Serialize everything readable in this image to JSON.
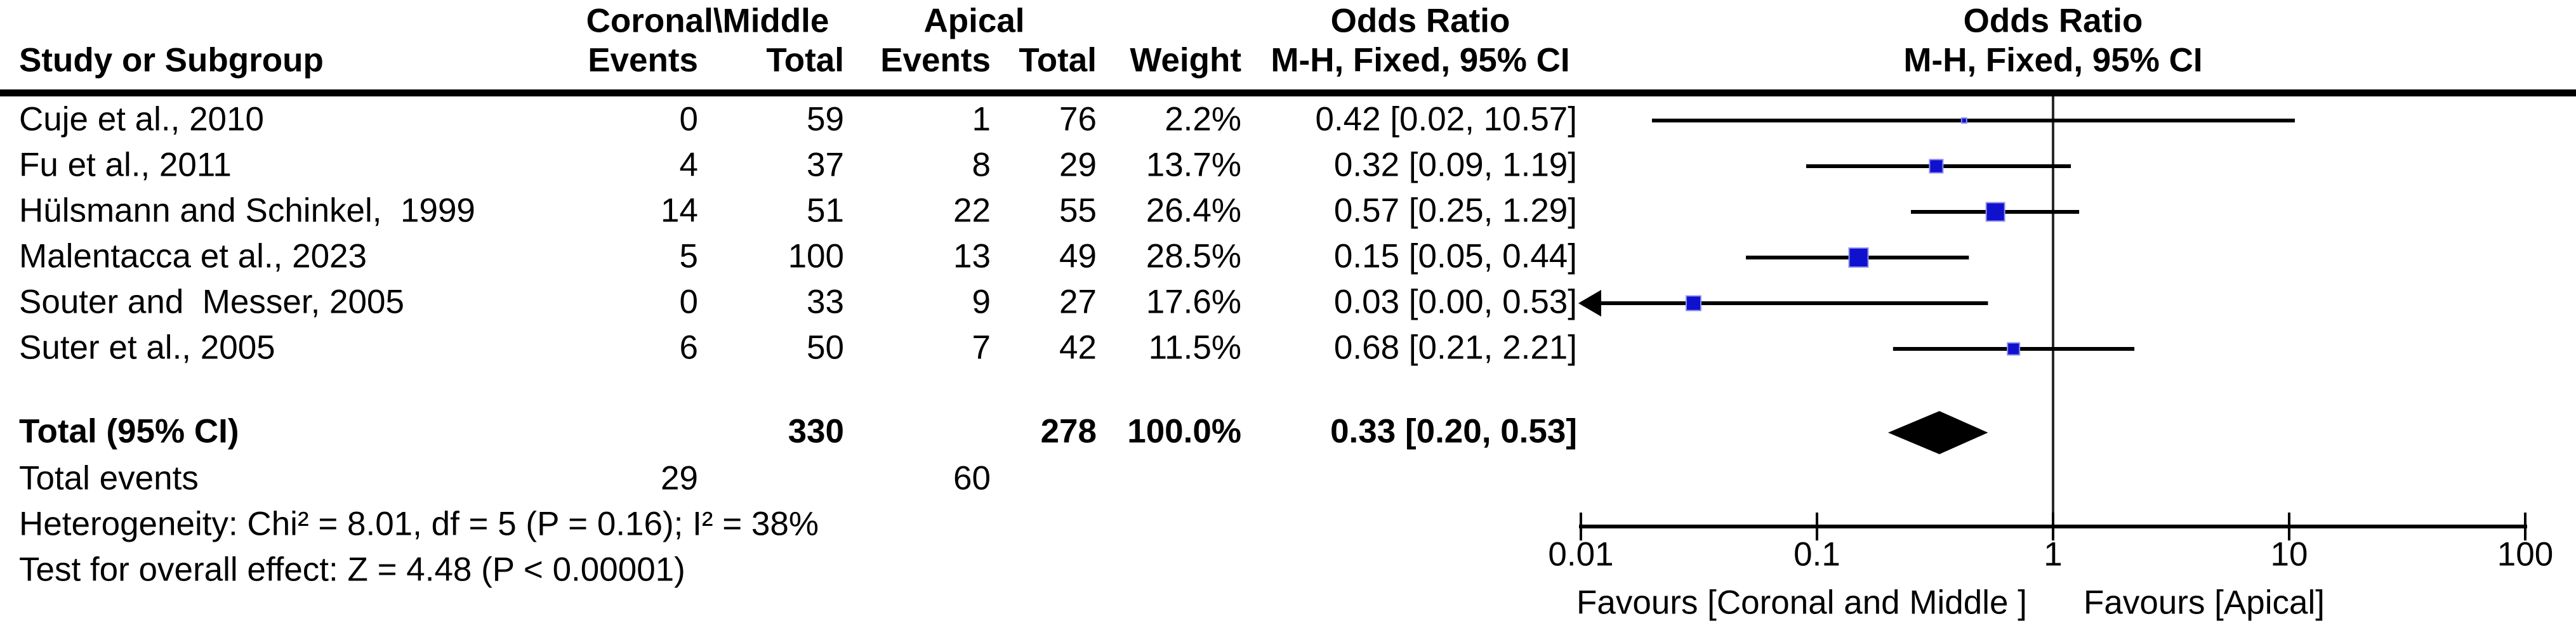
{
  "colors": {
    "marker_blue": "#0f11cd",
    "marker_edge": "#8c8ff0",
    "ink": "#000000",
    "reference_line": "#2a2a2a"
  },
  "header": {
    "group1_label": "Coronal\\Middle",
    "group2_label": "Apical",
    "study_col": "Study or Subgroup",
    "events_col_1": "Events",
    "total_col_1": "Total",
    "events_col_2": "Events",
    "total_col_2": "Total",
    "weight_col": "Weight",
    "or_title_text_col": "Odds Ratio",
    "or_method_text_col": "M-H, Fixed, 95% CI",
    "or_title_plot_col": "Odds Ratio",
    "or_method_plot_col": "M-H, Fixed, 95% CI"
  },
  "footer": {
    "heterogeneity": "Heterogeneity: Chi² = 8.01, df = 5 (P = 0.16); I² = 38%",
    "overall_effect": "Test for overall effect: Z = 4.48 (P < 0.00001)"
  },
  "chart_data": {
    "type": "forest",
    "effect_measure": "Odds Ratio",
    "method": "M-H, Fixed, 95% CI",
    "scale": "log",
    "axis": {
      "tick_labels": [
        "0.01",
        "0.1",
        "1",
        "10",
        "100"
      ],
      "tick_values": [
        0.01,
        0.1,
        1,
        10,
        100
      ],
      "min": 0.01,
      "max": 100
    },
    "favours_left": "Favours [Coronal and Middle ]",
    "favours_right": "Favours [Apical]",
    "studies": [
      {
        "name": "Cuje et al., 2010",
        "events1": "0",
        "total1": "59",
        "events2": "1",
        "total2": "76",
        "weight_label": "2.2%",
        "weight_pct": 2.2,
        "or_label": "0.42 [0.02, 10.57]",
        "or": 0.42,
        "ci_low": 0.02,
        "ci_high": 10.57,
        "arrow_low": false
      },
      {
        "name": "Fu et al., 2011",
        "events1": "4",
        "total1": "37",
        "events2": "8",
        "total2": "29",
        "weight_label": "13.7%",
        "weight_pct": 13.7,
        "or_label": "0.32 [0.09, 1.19]",
        "or": 0.32,
        "ci_low": 0.09,
        "ci_high": 1.19,
        "arrow_low": false
      },
      {
        "name": "Hülsmann and Schinkel,  1999",
        "events1": "14",
        "total1": "51",
        "events2": "22",
        "total2": "55",
        "weight_label": "26.4%",
        "weight_pct": 26.4,
        "or_label": "0.57 [0.25, 1.29]",
        "or": 0.57,
        "ci_low": 0.25,
        "ci_high": 1.29,
        "arrow_low": false
      },
      {
        "name": "Malentacca et al., 2023",
        "events1": "5",
        "total1": "100",
        "events2": "13",
        "total2": "49",
        "weight_label": "28.5%",
        "weight_pct": 28.5,
        "or_label": "0.15 [0.05, 0.44]",
        "or": 0.15,
        "ci_low": 0.05,
        "ci_high": 0.44,
        "arrow_low": false
      },
      {
        "name": "Souter and  Messer, 2005",
        "events1": "0",
        "total1": "33",
        "events2": "9",
        "total2": "27",
        "weight_label": "17.6%",
        "weight_pct": 17.6,
        "or_label": "0.03 [0.00, 0.53]",
        "or": 0.03,
        "ci_low": 0.0001,
        "ci_high": 0.53,
        "arrow_low": true
      },
      {
        "name": "Suter et al., 2005",
        "events1": "6",
        "total1": "50",
        "events2": "7",
        "total2": "42",
        "weight_label": "11.5%",
        "weight_pct": 11.5,
        "or_label": "0.68 [0.21, 2.21]",
        "or": 0.68,
        "ci_low": 0.21,
        "ci_high": 2.21,
        "arrow_low": false
      }
    ],
    "total": {
      "label": "Total (95% CI)",
      "total1": "330",
      "total2": "278",
      "weight_label": "100.0%",
      "or_label": "0.33 [0.20, 0.53]",
      "or": 0.33,
      "ci_low": 0.2,
      "ci_high": 0.53
    },
    "total_events": {
      "label": "Total events",
      "events1": "29",
      "events2": "60"
    }
  }
}
